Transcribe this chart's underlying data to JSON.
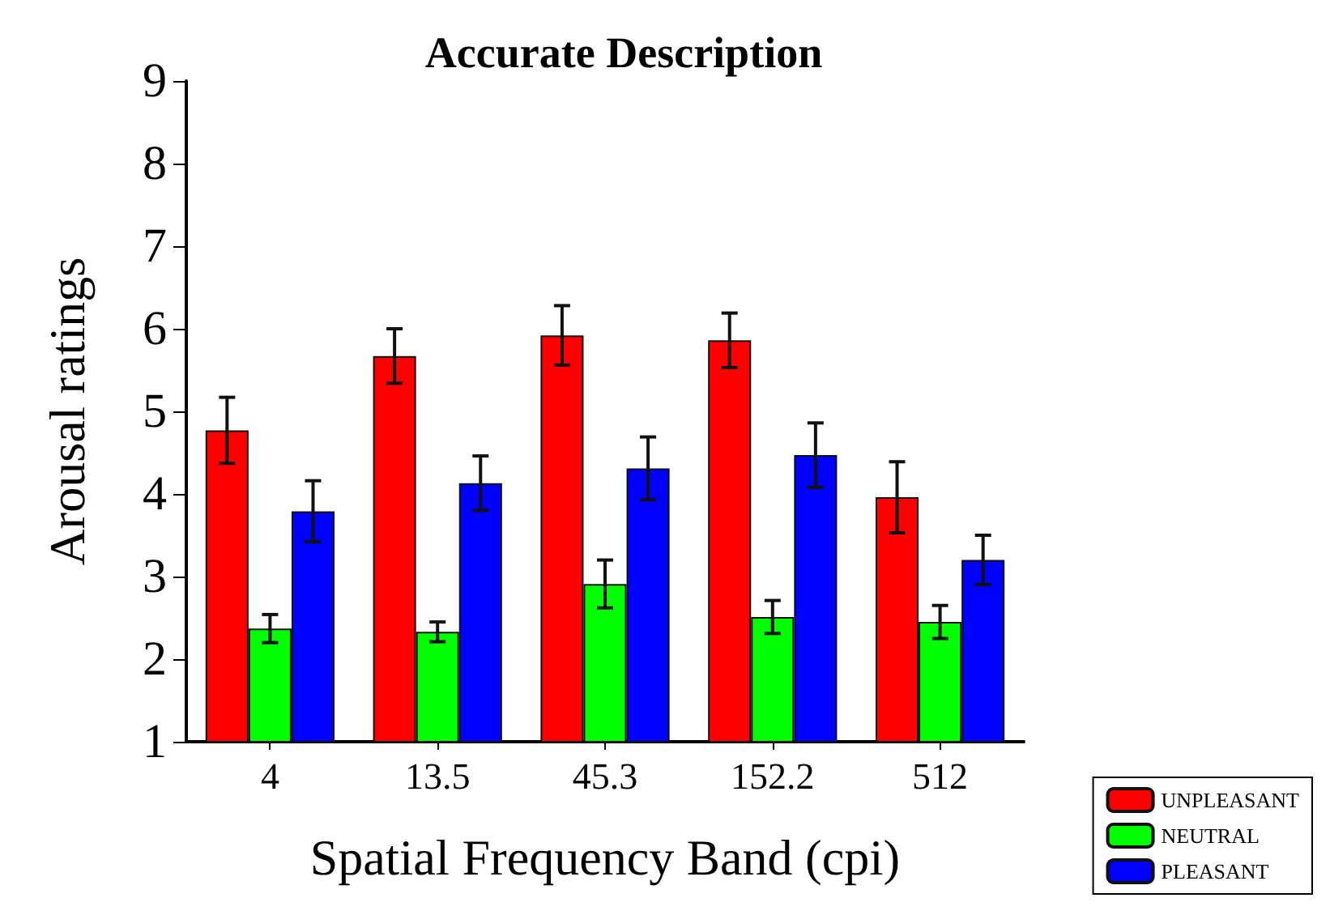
{
  "chart_data": {
    "type": "bar",
    "title": "Accurate Description",
    "xlabel": "Spatial Frequency Band (cpi)",
    "ylabel": "Arousal ratings",
    "categories": [
      "4",
      "13.5",
      "45.3",
      "152.2",
      "512"
    ],
    "series": [
      {
        "name": "UNPLEASANT",
        "color": "#ff0000",
        "values": [
          4.77,
          5.67,
          5.92,
          5.86,
          3.96
        ],
        "errors": [
          0.4,
          0.33,
          0.36,
          0.33,
          0.43
        ]
      },
      {
        "name": "NEUTRAL",
        "color": "#00ff00",
        "values": [
          2.37,
          2.33,
          2.91,
          2.51,
          2.45
        ],
        "errors": [
          0.17,
          0.12,
          0.29,
          0.2,
          0.2
        ]
      },
      {
        "name": "PLEASANT",
        "color": "#0000ff",
        "values": [
          3.79,
          4.13,
          4.31,
          4.47,
          3.2
        ],
        "errors": [
          0.37,
          0.33,
          0.38,
          0.39,
          0.3
        ]
      }
    ],
    "ylim": [
      1,
      9
    ],
    "yticks": [
      1,
      2,
      3,
      4,
      5,
      6,
      7,
      8,
      9
    ],
    "grid": false,
    "legend": "bottom right"
  }
}
